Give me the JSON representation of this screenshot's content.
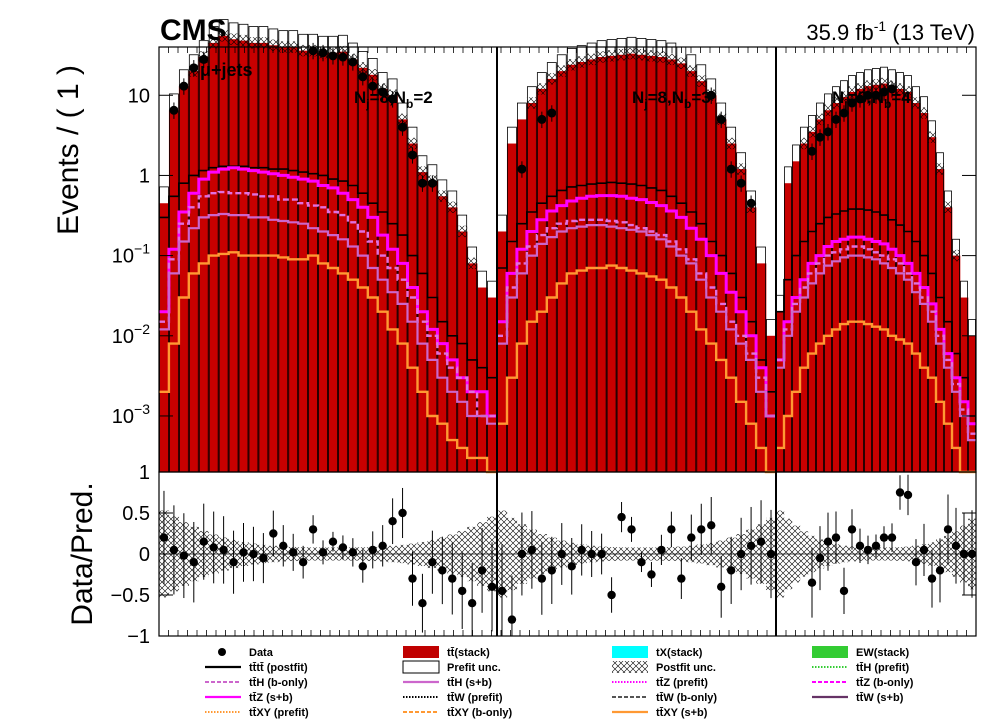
{
  "header": {
    "experiment": "CMS",
    "lumi_prefix": "35.9 fb",
    "lumi_exp": "-1",
    "lumi_suffix": " (13 TeV)"
  },
  "chart_data": {
    "type": "bar",
    "channel_label": "μ+jets",
    "ylabel_top": "Events / ( 1 )",
    "ylabel_bottom": "Data/Pred.",
    "yscale_top": "log",
    "ylim_top": [
      0.0002,
      40
    ],
    "ylim_bottom": [
      -1,
      1
    ],
    "top_ticks": [
      {
        "value": 10,
        "label": "10"
      },
      {
        "value": 1,
        "label": "1"
      },
      {
        "value": 0.1,
        "base": "10",
        "exp": "−1"
      },
      {
        "value": 0.01,
        "base": "10",
        "exp": "−2"
      },
      {
        "value": 0.001,
        "base": "10",
        "exp": "−3"
      }
    ],
    "bottom_ticks": [
      "1",
      "0.5",
      "0",
      "−0.5",
      "−1"
    ],
    "bottom_tick_values": [
      1,
      0.5,
      0,
      -0.5,
      -1
    ],
    "category_labels": [
      {
        "prefix": "N",
        "sub1": "j",
        "mid": "=8,N",
        "sub2": "b",
        "suffix": "=2"
      },
      {
        "prefix": "N",
        "sub1": "j",
        "mid": "=8,N",
        "sub2": "b",
        "suffix": "=3"
      },
      {
        "prefix": "N",
        "sub1": "j",
        "mid": "=8,N",
        "sub2": "b",
        "suffix": "=4"
      }
    ],
    "regions": [
      {
        "name": "Nj=8,Nb=2",
        "ttbar_stack": [
          0.45,
          6.5,
          13,
          20,
          30,
          45,
          55,
          50,
          48,
          45,
          45,
          42,
          40,
          40,
          36,
          36,
          34,
          34,
          35,
          28,
          22,
          18,
          12,
          10,
          5,
          2.5,
          1.1,
          0.85,
          0.55,
          0.4,
          0.2,
          0.08,
          0.04,
          0.03
        ],
        "data": [
          null,
          6.5,
          13,
          22,
          28,
          null,
          null,
          null,
          null,
          null,
          null,
          null,
          null,
          null,
          null,
          36,
          34,
          31,
          30,
          26,
          17,
          13,
          11,
          9,
          4,
          1.8,
          0.8,
          0.8,
          null,
          null,
          null,
          null,
          null,
          null
        ],
        "tttt_postfit": [
          0.3,
          0.55,
          0.8,
          1.0,
          1.15,
          1.25,
          1.3,
          1.3,
          1.3,
          1.25,
          1.25,
          1.2,
          1.2,
          1.15,
          1.1,
          1.05,
          1.0,
          0.9,
          0.85,
          0.75,
          0.6,
          0.45,
          0.35,
          0.25,
          0.18,
          0.1,
          0.06,
          0.03,
          0.015,
          0.01,
          0.008,
          0.005,
          0.004,
          0.003
        ],
        "tttt_sb": [
          0.02,
          0.12,
          0.35,
          0.6,
          0.9,
          1.1,
          1.2,
          1.25,
          1.2,
          1.15,
          1.1,
          1.05,
          1.0,
          0.95,
          0.9,
          0.85,
          0.75,
          0.7,
          0.6,
          0.5,
          0.4,
          0.3,
          0.18,
          0.12,
          0.08,
          0.04,
          0.02,
          0.012,
          0.008,
          0.005,
          0.003,
          0.002,
          0.002,
          0.001
        ],
        "ttH_bonly": [
          0.015,
          0.09,
          0.25,
          0.4,
          0.55,
          0.6,
          0.62,
          0.6,
          0.6,
          0.58,
          0.55,
          0.55,
          0.5,
          0.5,
          0.45,
          0.42,
          0.4,
          0.35,
          0.32,
          0.26,
          0.2,
          0.15,
          0.1,
          0.07,
          0.05,
          0.03,
          0.015,
          0.01,
          0.006,
          0.004,
          0.003,
          0.002,
          0.001,
          0.001
        ],
        "ttH_sb": [
          0.012,
          0.06,
          0.15,
          0.22,
          0.3,
          0.32,
          0.33,
          0.32,
          0.32,
          0.3,
          0.3,
          0.28,
          0.27,
          0.26,
          0.25,
          0.22,
          0.2,
          0.18,
          0.16,
          0.13,
          0.1,
          0.07,
          0.05,
          0.035,
          0.025,
          0.015,
          0.008,
          0.005,
          0.003,
          0.002,
          0.0015,
          0.001,
          0.001,
          0.0008
        ],
        "ttXY_sb": [
          0.002,
          0.008,
          0.03,
          0.06,
          0.08,
          0.1,
          0.105,
          0.11,
          0.1,
          0.1,
          0.1,
          0.1,
          0.095,
          0.09,
          0.09,
          0.1,
          0.08,
          0.07,
          0.06,
          0.05,
          0.04,
          0.03,
          0.02,
          0.012,
          0.008,
          0.004,
          0.002,
          0.001,
          0.0008,
          0.0005,
          0.0004,
          0.0003,
          0.0003,
          0.0002
        ],
        "ratio": [
          0.2,
          0.05,
          -0.02,
          -0.1,
          0.15,
          0.08,
          0.05,
          -0.1,
          0.02,
          0.0,
          -0.05,
          0.25,
          0.1,
          0.02,
          -0.1,
          0.3,
          0.02,
          0.15,
          0.08,
          0.02,
          -0.15,
          0.05,
          0.1,
          0.4,
          0.5,
          -0.3,
          -0.6,
          -0.1,
          -0.2,
          -0.3,
          -0.45,
          -0.6,
          -0.2,
          -0.4
        ]
      },
      {
        "name": "Nj=8,Nb=3",
        "ttbar_stack": [
          0.2,
          2.5,
          5,
          8,
          12,
          16,
          20,
          24,
          26,
          28,
          30,
          31,
          32,
          33,
          32,
          31,
          30,
          28,
          25,
          20,
          15,
          10,
          5,
          2.5,
          1.2,
          0.4,
          0.08,
          0.01
        ],
        "data": [
          null,
          null,
          1.2,
          null,
          5,
          6,
          null,
          null,
          null,
          null,
          null,
          null,
          null,
          null,
          null,
          null,
          null,
          null,
          null,
          null,
          null,
          10,
          5,
          1.2,
          0.8,
          0.45,
          null,
          null
        ],
        "tttt_postfit": [
          0.07,
          0.15,
          0.25,
          0.35,
          0.45,
          0.55,
          0.65,
          0.72,
          0.75,
          0.78,
          0.8,
          0.82,
          0.8,
          0.78,
          0.75,
          0.7,
          0.65,
          0.55,
          0.45,
          0.35,
          0.25,
          0.15,
          0.1,
          0.06,
          0.03,
          0.015,
          0.005,
          0.002
        ],
        "tttt_sb": [
          0.015,
          0.06,
          0.12,
          0.2,
          0.28,
          0.36,
          0.42,
          0.48,
          0.52,
          0.55,
          0.56,
          0.56,
          0.55,
          0.52,
          0.5,
          0.46,
          0.42,
          0.36,
          0.3,
          0.22,
          0.16,
          0.1,
          0.06,
          0.035,
          0.02,
          0.01,
          0.004,
          0.001
        ],
        "ttH_bonly": [
          0.01,
          0.04,
          0.08,
          0.13,
          0.18,
          0.22,
          0.25,
          0.27,
          0.28,
          0.28,
          0.28,
          0.27,
          0.26,
          0.24,
          0.22,
          0.2,
          0.18,
          0.15,
          0.12,
          0.09,
          0.06,
          0.04,
          0.025,
          0.015,
          0.01,
          0.006,
          0.003,
          0.001
        ],
        "ttH_sb": [
          0.008,
          0.03,
          0.06,
          0.1,
          0.14,
          0.17,
          0.2,
          0.22,
          0.23,
          0.24,
          0.24,
          0.23,
          0.22,
          0.21,
          0.2,
          0.18,
          0.16,
          0.13,
          0.1,
          0.08,
          0.05,
          0.03,
          0.02,
          0.012,
          0.008,
          0.005,
          0.002,
          0.001
        ],
        "ttXY_sb": [
          0.0008,
          0.003,
          0.008,
          0.015,
          0.02,
          0.03,
          0.045,
          0.06,
          0.065,
          0.07,
          0.07,
          0.075,
          0.07,
          0.065,
          0.06,
          0.055,
          0.05,
          0.04,
          0.03,
          0.02,
          0.012,
          0.008,
          0.005,
          0.003,
          0.0015,
          0.0008,
          0.0004,
          0.0002
        ],
        "ratio": [
          -0.45,
          -0.8,
          0.0,
          0.05,
          -0.3,
          -0.2,
          0.0,
          -0.15,
          0.05,
          0.0,
          0.0,
          -0.5,
          0.45,
          0.3,
          -0.1,
          -0.25,
          0.05,
          0.3,
          -0.3,
          0.2,
          0.3,
          0.35,
          -0.4,
          -0.2,
          0.0,
          0.1,
          0.15,
          0.0
        ]
      },
      {
        "name": "Nj=8,Nb=4",
        "ttbar_stack": [
          0.02,
          0.8,
          1.5,
          2.5,
          3.5,
          5,
          6.5,
          8,
          9.5,
          11,
          12,
          13,
          13.5,
          14,
          13,
          12,
          11,
          8,
          6,
          3,
          1.2,
          0.4,
          0.1,
          0.03,
          0.01
        ],
        "data": [
          null,
          null,
          null,
          null,
          2,
          3,
          3.5,
          5,
          6,
          8,
          9,
          10,
          10,
          11,
          12,
          null,
          null,
          null,
          null,
          null,
          null,
          null,
          null,
          null,
          null
        ],
        "tttt_postfit": [
          0.02,
          0.05,
          0.1,
          0.15,
          0.2,
          0.25,
          0.3,
          0.33,
          0.36,
          0.38,
          0.38,
          0.37,
          0.35,
          0.32,
          0.28,
          0.24,
          0.2,
          0.15,
          0.1,
          0.06,
          0.03,
          0.015,
          0.006,
          0.003,
          0.001
        ],
        "tttt_sb": [
          0.005,
          0.015,
          0.03,
          0.05,
          0.08,
          0.1,
          0.13,
          0.15,
          0.16,
          0.17,
          0.17,
          0.16,
          0.15,
          0.14,
          0.12,
          0.1,
          0.08,
          0.06,
          0.04,
          0.025,
          0.012,
          0.006,
          0.003,
          0.0015,
          0.0008
        ],
        "ttH_bonly": [
          0.005,
          0.012,
          0.025,
          0.04,
          0.06,
          0.08,
          0.1,
          0.11,
          0.12,
          0.13,
          0.13,
          0.12,
          0.11,
          0.1,
          0.09,
          0.08,
          0.06,
          0.045,
          0.03,
          0.02,
          0.01,
          0.005,
          0.0025,
          0.0012,
          0.0006
        ],
        "ttH_sb": [
          0.004,
          0.01,
          0.02,
          0.03,
          0.045,
          0.06,
          0.075,
          0.085,
          0.095,
          0.1,
          0.1,
          0.095,
          0.09,
          0.08,
          0.07,
          0.06,
          0.05,
          0.035,
          0.025,
          0.015,
          0.008,
          0.004,
          0.002,
          0.001,
          0.0005
        ],
        "ttXY_sb": [
          0.0004,
          0.001,
          0.002,
          0.004,
          0.006,
          0.008,
          0.01,
          0.012,
          0.014,
          0.015,
          0.015,
          0.014,
          0.013,
          0.012,
          0.01,
          0.009,
          0.008,
          0.006,
          0.004,
          0.003,
          0.0015,
          0.0008,
          0.0004,
          0.0002,
          0.0001
        ],
        "ratio": [
          null,
          null,
          null,
          null,
          -0.35,
          -0.05,
          0.15,
          0.2,
          -0.45,
          0.3,
          0.1,
          0.05,
          0.1,
          0.2,
          0.2,
          0.75,
          0.72,
          -0.1,
          0.05,
          -0.3,
          -0.2,
          0.3,
          0.1,
          0.0,
          0.0
        ]
      }
    ],
    "legend": [
      {
        "label": "Data",
        "style": "marker",
        "color": "#000000"
      },
      {
        "label": "tt̄(stack)",
        "style": "fill",
        "color": "#c00000"
      },
      {
        "label": "tX(stack)",
        "style": "fill",
        "color": "#00ffff"
      },
      {
        "label": "EW(stack)",
        "style": "fill",
        "color": "#33cc33"
      },
      {
        "label": "tt̄tt̄ (postfit)",
        "style": "line",
        "color": "#000000"
      },
      {
        "label": "Prefit unc.",
        "style": "box",
        "color": "#000000"
      },
      {
        "label": "Postfit unc.",
        "style": "hatch",
        "color": "#000000"
      },
      {
        "label": "tt̄H (prefit)",
        "style": "dotted",
        "color": "#33cc33"
      },
      {
        "label": "tt̄H (b-only)",
        "style": "dashed",
        "color": "#cc66cc"
      },
      {
        "label": "tt̄H (s+b)",
        "style": "line",
        "color": "#cc66cc"
      },
      {
        "label": "tt̄Z (prefit)",
        "style": "dotted",
        "color": "#ff00ff"
      },
      {
        "label": "tt̄Z (b-only)",
        "style": "dashed",
        "color": "#ff00ff"
      },
      {
        "label": "tt̄Z (s+b)",
        "style": "line",
        "color": "#ff00ff"
      },
      {
        "label": "tt̄W (prefit)",
        "style": "dotted",
        "color": "#000000"
      },
      {
        "label": "tt̄W (b-only)",
        "style": "dashed",
        "color": "#555555"
      },
      {
        "label": "tt̄W (s+b)",
        "style": "line",
        "color": "#663366"
      },
      {
        "label": "tt̄XY (prefit)",
        "style": "dotted",
        "color": "#ff9933"
      },
      {
        "label": "tt̄XY (b-only)",
        "style": "dashed",
        "color": "#ff9933"
      },
      {
        "label": "tt̄XY (s+b)",
        "style": "line",
        "color": "#ff9933"
      }
    ]
  }
}
